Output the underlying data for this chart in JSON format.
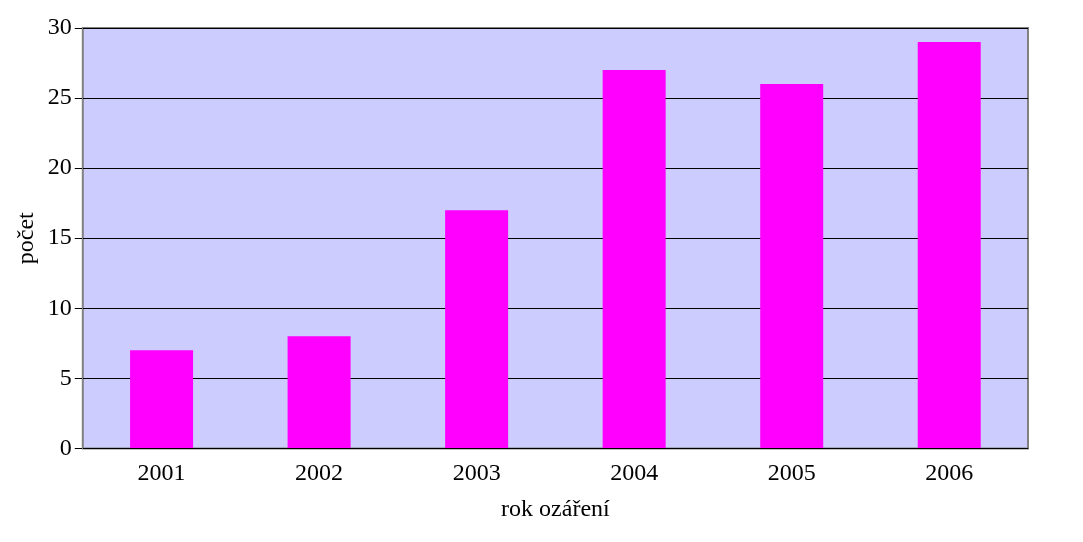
{
  "chart_data": {
    "type": "bar",
    "xlabel": "rok ozáření",
    "ylabel": "počet",
    "categories": [
      "2001",
      "2002",
      "2003",
      "2004",
      "2005",
      "2006"
    ],
    "values": [
      7,
      8,
      17,
      27,
      26,
      29
    ],
    "color": "#ff00ff",
    "ylim": [
      0,
      30
    ],
    "yticks": [
      0,
      5,
      10,
      15,
      20,
      25,
      30
    ],
    "grid": "y"
  }
}
